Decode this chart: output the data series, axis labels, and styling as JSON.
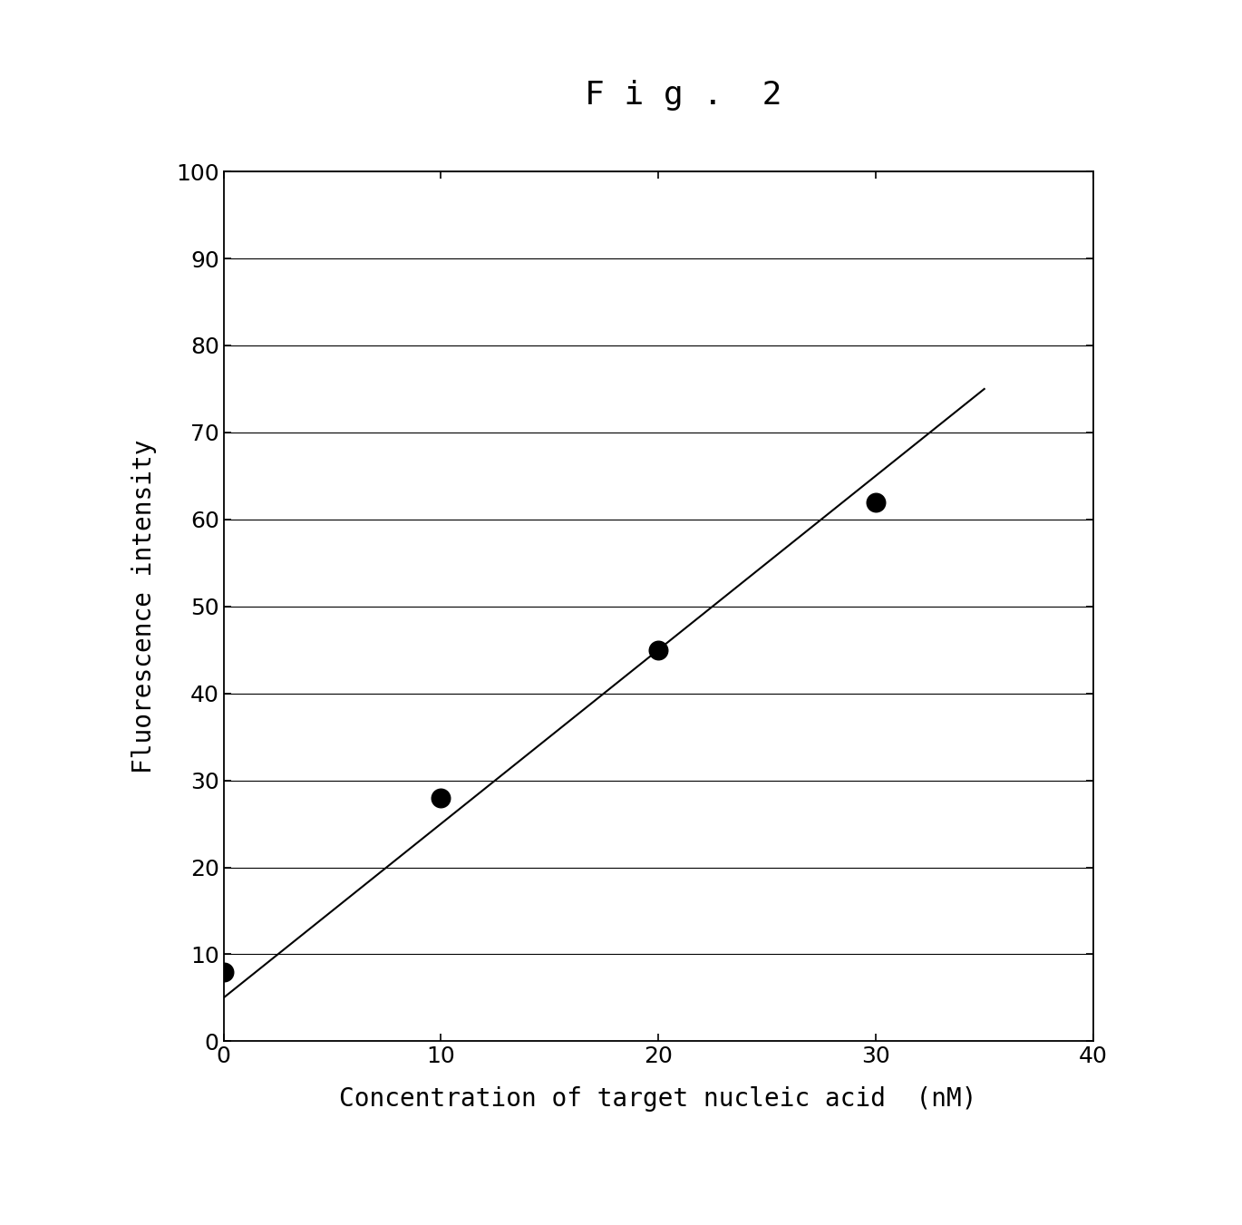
{
  "title": "F i g .  2",
  "xlabel": "Concentration of target nucleic acid  (nM)",
  "ylabel": "Fluorescence intensity",
  "xlim": [
    0,
    40
  ],
  "ylim": [
    0,
    100
  ],
  "xticks": [
    0,
    10,
    20,
    30,
    40
  ],
  "yticks": [
    0,
    10,
    20,
    30,
    40,
    50,
    60,
    70,
    80,
    90,
    100
  ],
  "scatter_x": [
    0,
    10,
    20,
    30
  ],
  "scatter_y": [
    8,
    28,
    45,
    62
  ],
  "line_x": [
    0,
    35
  ],
  "line_y": [
    5,
    75
  ],
  "scatter_color": "#000000",
  "line_color": "#000000",
  "scatter_size": 220,
  "background_color": "#ffffff",
  "title_fontsize": 26,
  "label_fontsize": 20,
  "tick_fontsize": 18,
  "line_width": 1.5
}
